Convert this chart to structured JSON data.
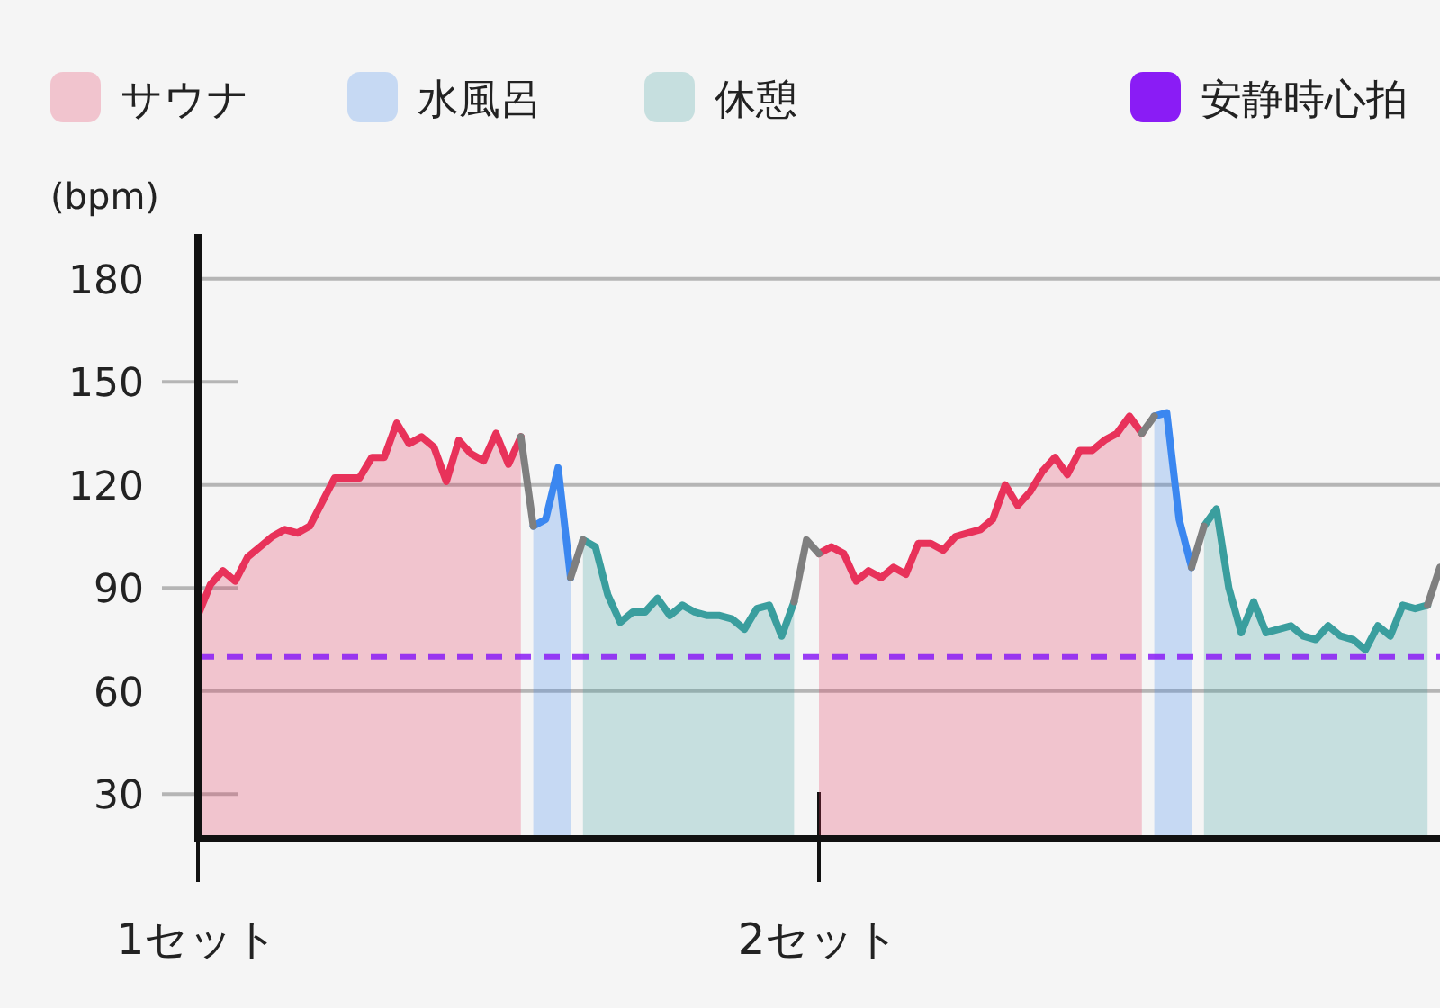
{
  "chart_data": {
    "type": "area",
    "ylabel": "(bpm)",
    "ylim": [
      17,
      193
    ],
    "yticks": [
      30,
      60,
      90,
      120,
      150,
      180
    ],
    "grid": "y",
    "legend": "top",
    "line_style": "solid",
    "categories": [
      "1セット",
      null,
      null,
      null,
      null,
      null,
      null,
      null,
      null,
      null,
      null,
      null,
      null,
      null,
      null,
      null,
      null,
      null,
      null,
      null,
      null,
      null,
      null,
      null,
      null,
      null,
      null,
      null,
      null,
      null,
      null,
      null,
      null,
      null,
      null,
      null,
      null,
      null,
      null,
      null,
      null,
      null,
      null,
      null,
      null,
      null,
      null,
      null,
      null,
      null,
      "2セット",
      null,
      null,
      null,
      null,
      null,
      null,
      null,
      null,
      null,
      null,
      null,
      null,
      null,
      null,
      null,
      null,
      null,
      null,
      null,
      null,
      null,
      null,
      null,
      null,
      null,
      null,
      null,
      null,
      null,
      null,
      null,
      null,
      null,
      null,
      null,
      null,
      null,
      null,
      null,
      null,
      null,
      null,
      null,
      null,
      null,
      null,
      null,
      null,
      null,
      null
    ],
    "series": [
      {
        "name": "サウナ",
        "color": "#e8325a",
        "values": [
          82,
          91,
          95,
          92,
          99,
          102,
          105,
          107,
          106,
          108,
          115,
          122,
          122,
          122,
          128,
          128,
          138,
          132,
          134,
          131,
          121,
          133,
          129,
          127,
          135,
          126,
          134,
          null,
          null,
          null,
          null,
          null,
          null,
          null,
          null,
          null,
          null,
          null,
          null,
          null,
          null,
          null,
          null,
          null,
          null,
          null,
          null,
          null,
          null,
          null,
          100,
          102,
          100,
          92,
          95,
          93,
          96,
          94,
          103,
          103,
          101,
          105,
          106,
          107,
          110,
          120,
          114,
          118,
          124,
          128,
          123,
          130,
          130,
          133,
          135,
          140,
          135,
          null,
          null,
          null,
          null,
          null,
          null,
          null,
          null,
          null,
          null,
          null,
          null,
          null,
          null,
          null,
          null,
          null,
          null,
          null,
          null,
          null,
          null,
          null,
          null
        ]
      },
      {
        "name": "水風呂",
        "color": "#3b87f0",
        "values": [
          null,
          null,
          null,
          null,
          null,
          null,
          null,
          null,
          null,
          null,
          null,
          null,
          null,
          null,
          null,
          null,
          null,
          null,
          null,
          null,
          null,
          null,
          null,
          null,
          null,
          null,
          null,
          108,
          110,
          125,
          93,
          null,
          null,
          null,
          null,
          null,
          null,
          null,
          null,
          null,
          null,
          null,
          null,
          null,
          null,
          null,
          null,
          null,
          null,
          null,
          null,
          null,
          null,
          null,
          null,
          null,
          null,
          null,
          null,
          null,
          null,
          null,
          null,
          null,
          null,
          null,
          null,
          null,
          null,
          null,
          null,
          null,
          null,
          null,
          null,
          null,
          null,
          140,
          141,
          110,
          96,
          null,
          null,
          null,
          null,
          null,
          null,
          null,
          null,
          null,
          null,
          null,
          null,
          null,
          null,
          null,
          null,
          null,
          null,
          null,
          null
        ]
      },
      {
        "name": "休憩",
        "color": "#3a9e9e",
        "values": [
          null,
          null,
          null,
          null,
          null,
          null,
          null,
          null,
          null,
          null,
          null,
          null,
          null,
          null,
          null,
          null,
          null,
          null,
          null,
          null,
          null,
          null,
          null,
          null,
          null,
          null,
          null,
          null,
          null,
          null,
          null,
          104,
          102,
          88,
          80,
          83,
          83,
          87,
          82,
          85,
          83,
          82,
          82,
          81,
          78,
          84,
          85,
          76,
          86,
          null,
          null,
          null,
          null,
          null,
          null,
          null,
          null,
          null,
          null,
          null,
          null,
          null,
          null,
          null,
          null,
          null,
          null,
          null,
          null,
          null,
          null,
          null,
          null,
          null,
          null,
          null,
          null,
          null,
          null,
          null,
          null,
          108,
          113,
          90,
          77,
          86,
          77,
          78,
          79,
          76,
          75,
          79,
          76,
          75,
          72,
          79,
          76,
          85,
          84,
          85,
          null
        ]
      },
      {
        "type": "line",
        "color": "#7f7f7f",
        "values": [
          null,
          null,
          null,
          null,
          null,
          null,
          null,
          null,
          null,
          null,
          null,
          null,
          null,
          null,
          null,
          null,
          null,
          null,
          null,
          null,
          null,
          null,
          null,
          null,
          null,
          null,
          134,
          108,
          null,
          null,
          93,
          104,
          null,
          null,
          null,
          null,
          null,
          null,
          null,
          null,
          null,
          null,
          null,
          null,
          null,
          null,
          null,
          null,
          86,
          104,
          100,
          null,
          null,
          null,
          null,
          null,
          null,
          null,
          null,
          null,
          null,
          null,
          null,
          null,
          null,
          null,
          null,
          null,
          null,
          null,
          null,
          null,
          null,
          null,
          null,
          null,
          135,
          140,
          null,
          null,
          96,
          108,
          null,
          null,
          null,
          null,
          null,
          null,
          null,
          null,
          null,
          null,
          null,
          null,
          null,
          null,
          null,
          null,
          null,
          85,
          96
        ]
      }
    ],
    "ref_lines": [
      {
        "axis": "y",
        "value": 70,
        "label": "安静時心拍",
        "color": "#8a1cf5",
        "line_style": "dashed"
      }
    ]
  }
}
